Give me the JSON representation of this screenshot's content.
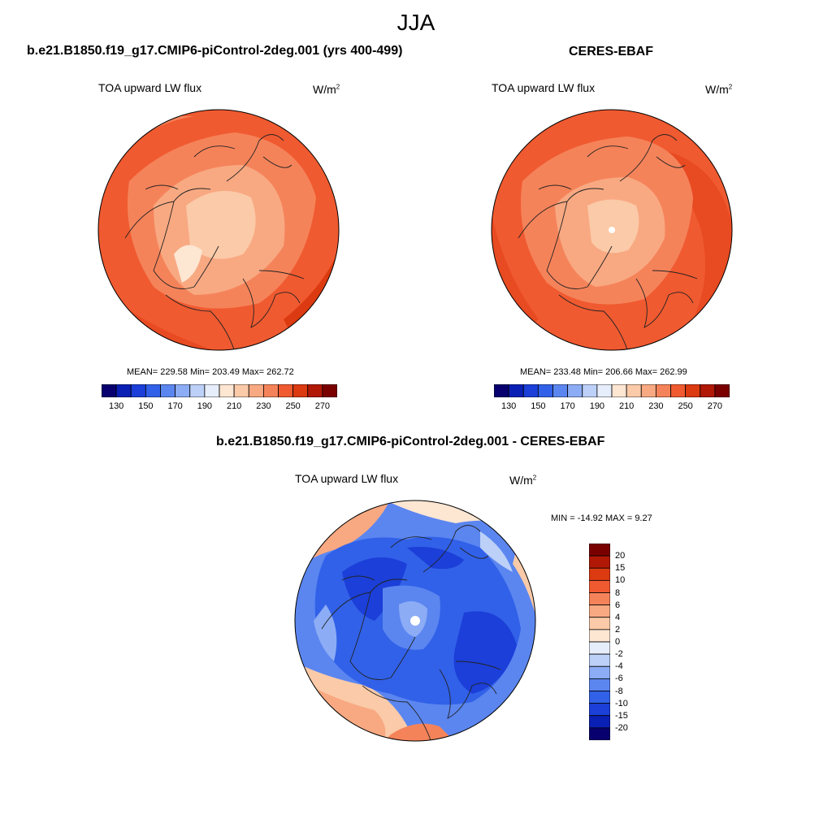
{
  "season": "JJA",
  "panels": [
    {
      "title": "b.e21.B1850.f19_g17.CMIP6-piControl-2deg.001 (yrs 400-499)",
      "variable": "TOA upward LW flux",
      "units_base": "W/m",
      "units_exp": "2",
      "stats": "MEAN= 229.58  Min= 203.49  Max= 262.72",
      "mean": 229.58,
      "min": 203.49,
      "max": 262.72
    },
    {
      "title": "CERES-EBAF",
      "variable": "TOA upward LW flux",
      "units_base": "W/m",
      "units_exp": "2",
      "stats": "MEAN= 233.48  Min= 206.66  Max= 262.99",
      "mean": 233.48,
      "min": 206.66,
      "max": 262.99
    },
    {
      "title": "b.e21.B1850.f19_g17.CMIP6-piControl-2deg.001 - CERES-EBAF",
      "variable": "TOA upward LW flux",
      "units_base": "W/m",
      "units_exp": "2",
      "stats": "MIN = -14.92 MAX =   9.27",
      "min": -14.92,
      "max": 9.27
    }
  ],
  "abs_colorbar": {
    "colors": [
      "#08006e",
      "#0a1fb4",
      "#1b3fd8",
      "#3161e8",
      "#5b86f0",
      "#8cacf5",
      "#bcd0f8",
      "#e6edfb",
      "#fde6d2",
      "#fbcaa8",
      "#f8a982",
      "#f5835a",
      "#f05a30",
      "#dc3a10",
      "#b11806",
      "#7a0000"
    ],
    "ticks": [
      "130",
      "150",
      "170",
      "190",
      "210",
      "230",
      "250",
      "270"
    ]
  },
  "diff_colorbar": {
    "colors": [
      "#7a0000",
      "#b11806",
      "#dc3a10",
      "#f05a30",
      "#f5835a",
      "#f8a982",
      "#fbcaa8",
      "#fde6d2",
      "#e6edfb",
      "#bcd0f8",
      "#8cacf5",
      "#5b86f0",
      "#3161e8",
      "#1b3fd8",
      "#0a1fb4",
      "#08006e"
    ],
    "ticks": [
      "20",
      "15",
      "10",
      "8",
      "6",
      "4",
      "2",
      "0",
      "-2",
      "-4",
      "-6",
      "-8",
      "-10",
      "-15",
      "-20"
    ]
  }
}
